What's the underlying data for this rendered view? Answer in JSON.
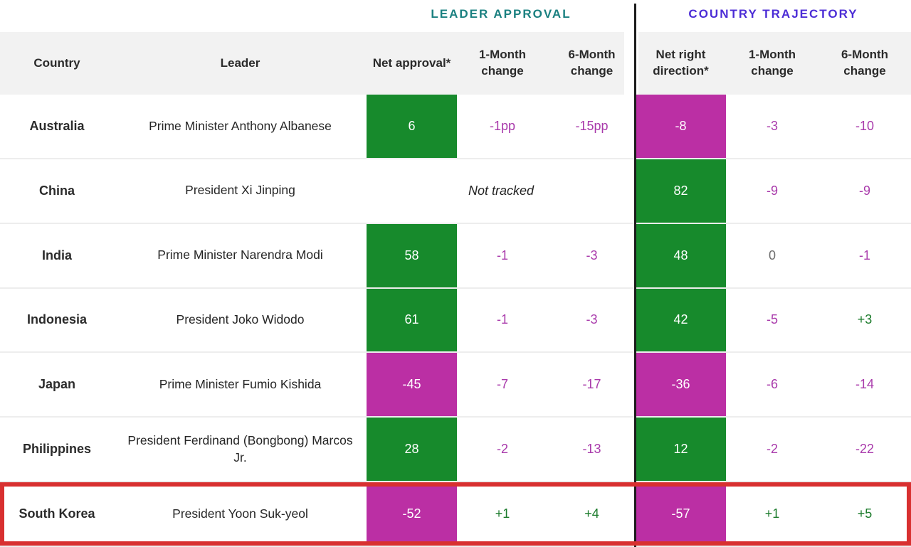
{
  "colors": {
    "green_box": "#178A2C",
    "magenta_box": "#BB2FA4",
    "teal_section": "#1A8080",
    "indigo_section": "#4C2DD6",
    "negative_text": "#A93AAB",
    "positive_text": "#1D7C2D",
    "zero_text": "#6E6E6E",
    "highlight_red": "#D83030",
    "header_band": "#F2F2F2"
  },
  "section_headers": {
    "left": "LEADER APPROVAL",
    "right": "COUNTRY TRAJECTORY"
  },
  "column_headers": {
    "country": "Country",
    "leader": "Leader",
    "net_approval": "Net approval*",
    "approval_m1": "1-Month change",
    "approval_m6": "6-Month change",
    "net_right_direction": "Net right direction*",
    "trajectory_m1": "1-Month change",
    "trajectory_m6": "6-Month change"
  },
  "chart_data": {
    "type": "table",
    "rows": [
      {
        "country": "Australia",
        "leader": "Prime Minister Anthony Albanese",
        "approval": {
          "net": "6",
          "net_class": "box-green",
          "m1": "-1pp",
          "m1_class": "val-neg",
          "m6": "-15pp",
          "m6_class": "val-neg"
        },
        "trajectory": {
          "net": "-8",
          "net_class": "box-magenta",
          "m1": "-3",
          "m1_class": "val-neg",
          "m6": "-10",
          "m6_class": "val-neg"
        }
      },
      {
        "country": "China",
        "leader": "President Xi Jinping",
        "approval_not_tracked": "Not tracked",
        "trajectory": {
          "net": "82",
          "net_class": "box-green",
          "m1": "-9",
          "m1_class": "val-neg",
          "m6": "-9",
          "m6_class": "val-neg"
        }
      },
      {
        "country": "India",
        "leader": "Prime Minister Narendra Modi",
        "approval": {
          "net": "58",
          "net_class": "box-green",
          "m1": "-1",
          "m1_class": "val-neg",
          "m6": "-3",
          "m6_class": "val-neg"
        },
        "trajectory": {
          "net": "48",
          "net_class": "box-green",
          "m1": "0",
          "m1_class": "val-zero",
          "m6": "-1",
          "m6_class": "val-neg"
        }
      },
      {
        "country": "Indonesia",
        "leader": "President Joko Widodo",
        "approval": {
          "net": "61",
          "net_class": "box-green",
          "m1": "-1",
          "m1_class": "val-neg",
          "m6": "-3",
          "m6_class": "val-neg"
        },
        "trajectory": {
          "net": "42",
          "net_class": "box-green",
          "m1": "-5",
          "m1_class": "val-neg",
          "m6": "+3",
          "m6_class": "val-pos"
        }
      },
      {
        "country": "Japan",
        "leader": "Prime Minister Fumio Kishida",
        "approval": {
          "net": "-45",
          "net_class": "box-magenta",
          "m1": "-7",
          "m1_class": "val-neg",
          "m6": "-17",
          "m6_class": "val-neg"
        },
        "trajectory": {
          "net": "-36",
          "net_class": "box-magenta",
          "m1": "-6",
          "m1_class": "val-neg",
          "m6": "-14",
          "m6_class": "val-neg"
        }
      },
      {
        "country": "Philippines",
        "leader": "President Ferdinand (Bongbong) Marcos Jr.",
        "approval": {
          "net": "28",
          "net_class": "box-green",
          "m1": "-2",
          "m1_class": "val-neg",
          "m6": "-13",
          "m6_class": "val-neg"
        },
        "trajectory": {
          "net": "12",
          "net_class": "box-green",
          "m1": "-2",
          "m1_class": "val-neg",
          "m6": "-22",
          "m6_class": "val-neg"
        }
      },
      {
        "country": "South Korea",
        "leader": "President Yoon Suk-yeol",
        "highlighted": true,
        "approval": {
          "net": "-52",
          "net_class": "box-magenta",
          "m1": "+1",
          "m1_class": "val-pos",
          "m6": "+4",
          "m6_class": "val-pos"
        },
        "trajectory": {
          "net": "-57",
          "net_class": "box-magenta",
          "m1": "+1",
          "m1_class": "val-pos",
          "m6": "+5",
          "m6_class": "val-pos"
        }
      }
    ]
  }
}
